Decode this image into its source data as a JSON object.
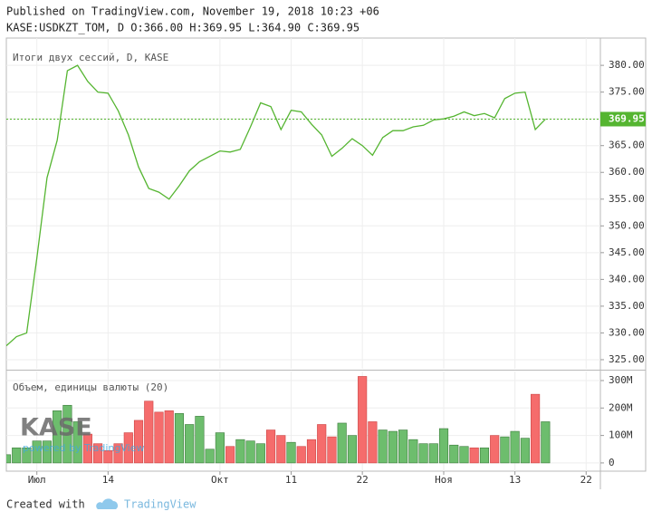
{
  "header": {
    "title": "Published on TradingView.com, November 19, 2018 10:23 +06",
    "symbol_line": "KASE:USDKZT_TOM, D O:366.00 H:369.95 L:364.90 C:369.95"
  },
  "logo": {
    "name": "KASE",
    "tagline": "powered by TradingView"
  },
  "footer": {
    "text": "Created with",
    "brand": "TradingView"
  },
  "chart_data": [
    {
      "type": "line",
      "title": "Итоги двух сессий, D, KASE",
      "series": [
        {
          "name": "USDKZT_TOM",
          "color": "#55b531",
          "values": [
            327.6,
            329.3,
            330,
            344,
            359,
            366,
            379,
            380,
            377,
            375,
            374.8,
            371.5,
            367,
            361,
            357,
            356.3,
            355,
            357.5,
            360.3,
            362,
            363,
            364,
            363.8,
            364.3,
            368.5,
            373,
            372.3,
            368,
            371.6,
            371.3,
            369,
            367,
            363,
            364.5,
            366.3,
            365,
            363.2,
            366.5,
            367.8,
            367.8,
            368.5,
            368.8,
            369.8,
            370,
            370.5,
            371.3,
            370.6,
            371,
            370.2,
            373.8,
            374.8,
            375,
            368,
            369.95
          ]
        }
      ],
      "last_price_line": true,
      "xlim": [
        0,
        58.4
      ],
      "ylim": [
        323.3,
        385.1
      ],
      "yticks": [
        {
          "value": 325,
          "label": "325.00"
        },
        {
          "value": 330,
          "label": "330.00"
        },
        {
          "value": 335,
          "label": "335.00"
        },
        {
          "value": 340,
          "label": "340.00"
        },
        {
          "value": 345,
          "label": "345.00"
        },
        {
          "value": 350,
          "label": "350.00"
        },
        {
          "value": 355,
          "label": "355.00"
        },
        {
          "value": 360,
          "label": "360.00"
        },
        {
          "value": 365,
          "label": "365.00"
        },
        {
          "value": 370,
          "label": "370.00"
        },
        {
          "value": 375,
          "label": "375.00"
        },
        {
          "value": 380,
          "label": "380.00"
        }
      ],
      "xticks": [
        3,
        10,
        21,
        28,
        35,
        43,
        50,
        57
      ],
      "grid": true
    },
    {
      "type": "bar",
      "title": "Объем, единицы валюты (20)",
      "up_color": "#6dbd6d",
      "down_color": "#f56c6c",
      "values": [
        30,
        55,
        55,
        80,
        80,
        190,
        210,
        150,
        105,
        70,
        45,
        70,
        110,
        155,
        225,
        185,
        190,
        180,
        140,
        170,
        50,
        110,
        60,
        85,
        80,
        70,
        120,
        100,
        75,
        60,
        85,
        140,
        95,
        145,
        100,
        315,
        150,
        120,
        115,
        120,
        85,
        70,
        70,
        125,
        65,
        60,
        55,
        55,
        100,
        95,
        115,
        90,
        250,
        150
      ],
      "xlim": [
        0,
        58.4
      ],
      "ylim": [
        -30,
        333
      ],
      "yticks": [
        0,
        {
          "value": 100,
          "label": "100M"
        },
        {
          "value": 200,
          "label": "200M"
        },
        {
          "value": 300,
          "label": "300M"
        }
      ],
      "xticks": [
        {
          "value": 3,
          "label": "Июл"
        },
        {
          "value": 10,
          "label": "14"
        },
        {
          "value": 21,
          "label": "Окт"
        },
        {
          "value": 28,
          "label": "11"
        },
        {
          "value": 35,
          "label": "22"
        },
        {
          "value": 43,
          "label": "Ноя"
        },
        {
          "value": 50,
          "label": "13"
        },
        {
          "value": 57,
          "label": "22"
        }
      ],
      "grid": true
    }
  ]
}
